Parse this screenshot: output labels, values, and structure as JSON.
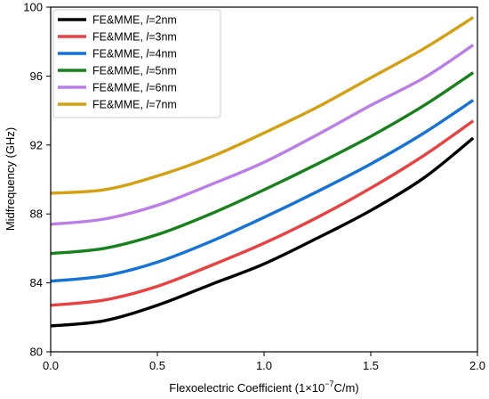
{
  "chart_data": {
    "type": "line",
    "xlabel_main": "Flexoelectric Coefficient (1×10",
    "xlabel_exp": "−7",
    "xlabel_unit": "C/m)",
    "ylabel": "Midfrequency (GHz)",
    "xlim": [
      0.0,
      2.0
    ],
    "ylim": [
      80,
      100
    ],
    "xticks": [
      "0.0",
      "0.5",
      "1.0",
      "1.5",
      "2.0"
    ],
    "yticks": [
      "80",
      "84",
      "88",
      "92",
      "96",
      "100"
    ],
    "grid": false,
    "legend_position": "top-left",
    "x": [
      0.0,
      0.25,
      0.5,
      0.75,
      1.0,
      1.25,
      1.5,
      1.75,
      1.98
    ],
    "series": [
      {
        "label_prefix": "FE&MME, ",
        "label_var": "l",
        "label_suffix": "=2nm",
        "color": "#000000",
        "values": [
          81.5,
          81.8,
          82.7,
          83.9,
          85.1,
          86.6,
          88.2,
          90.1,
          92.4
        ]
      },
      {
        "label_prefix": "FE&MME, ",
        "label_var": "l",
        "label_suffix": "=3nm",
        "color": "#e8413f",
        "values": [
          82.7,
          83.0,
          83.8,
          85.0,
          86.3,
          87.8,
          89.5,
          91.4,
          93.4
        ]
      },
      {
        "label_prefix": "FE&MME, ",
        "label_var": "l",
        "label_suffix": "=4nm",
        "color": "#1572d6",
        "values": [
          84.1,
          84.4,
          85.2,
          86.4,
          87.8,
          89.3,
          90.9,
          92.7,
          94.6
        ]
      },
      {
        "label_prefix": "FE&MME, ",
        "label_var": "l",
        "label_suffix": "=5nm",
        "color": "#17811c",
        "values": [
          85.7,
          86.0,
          86.8,
          88.0,
          89.4,
          90.9,
          92.5,
          94.3,
          96.2
        ]
      },
      {
        "label_prefix": "FE&MME, ",
        "label_var": "l",
        "label_suffix": "=6nm",
        "color": "#bb7de8",
        "values": [
          87.4,
          87.7,
          88.5,
          89.7,
          91.0,
          92.6,
          94.3,
          95.9,
          97.8
        ]
      },
      {
        "label_prefix": "FE&MME, ",
        "label_var": "l",
        "label_suffix": "=7nm",
        "color": "#d4a012",
        "values": [
          89.2,
          89.4,
          90.2,
          91.3,
          92.7,
          94.2,
          95.9,
          97.6,
          99.4
        ]
      }
    ]
  }
}
